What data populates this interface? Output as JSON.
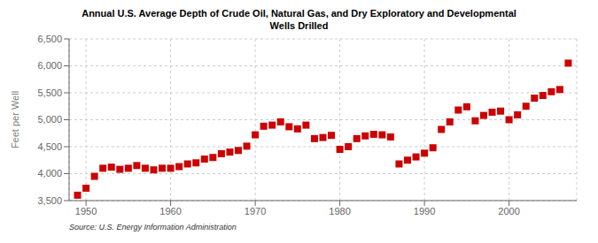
{
  "chart_data": {
    "type": "scatter",
    "title": "Annual U.S. Average Depth of Crude Oil, Natural Gas, and Dry Exploratory and Developmental\nWells Drilled",
    "ylabel": "Feet per Well",
    "annotation": "Source: U.S. Energy Information Administration",
    "x": [
      1949,
      1950,
      1951,
      1952,
      1953,
      1954,
      1955,
      1956,
      1957,
      1958,
      1959,
      1960,
      1961,
      1962,
      1963,
      1964,
      1965,
      1966,
      1967,
      1968,
      1969,
      1970,
      1971,
      1972,
      1973,
      1974,
      1975,
      1976,
      1977,
      1978,
      1979,
      1980,
      1981,
      1982,
      1983,
      1984,
      1985,
      1986,
      1987,
      1988,
      1989,
      1990,
      1991,
      1992,
      1993,
      1994,
      1995,
      1996,
      1997,
      1998,
      1999,
      2000,
      2001,
      2002,
      2003,
      2004,
      2005,
      2006,
      2007
    ],
    "values": [
      3600,
      3730,
      3950,
      4100,
      4120,
      4080,
      4100,
      4150,
      4100,
      4070,
      4100,
      4100,
      4130,
      4180,
      4200,
      4270,
      4300,
      4370,
      4400,
      4430,
      4510,
      4720,
      4880,
      4900,
      4960,
      4870,
      4830,
      4900,
      4650,
      4670,
      4710,
      4450,
      4500,
      4650,
      4700,
      4730,
      4720,
      4680,
      4180,
      4250,
      4310,
      4380,
      4480,
      4820,
      4960,
      5180,
      5240,
      4980,
      5080,
      5140,
      5160,
      5000,
      5090,
      5250,
      5400,
      5450,
      5520,
      5560,
      6050
    ],
    "color": "#cc0000",
    "marker": "square",
    "xlim": [
      1948,
      2008
    ],
    "xticks": [
      1950,
      1960,
      1970,
      1980,
      1990,
      2000
    ],
    "ylim": [
      3500,
      6500
    ],
    "yticks": [
      {
        "value": 3500,
        "label": "3,500"
      },
      {
        "value": 4000,
        "label": "4,000"
      },
      {
        "value": 4500,
        "label": "4,500"
      },
      {
        "value": 5000,
        "label": "5,000"
      },
      {
        "value": 5500,
        "label": "5,500"
      },
      {
        "value": 6000,
        "label": "6,000"
      },
      {
        "value": 6500,
        "label": "6,500"
      }
    ],
    "grid": true
  }
}
